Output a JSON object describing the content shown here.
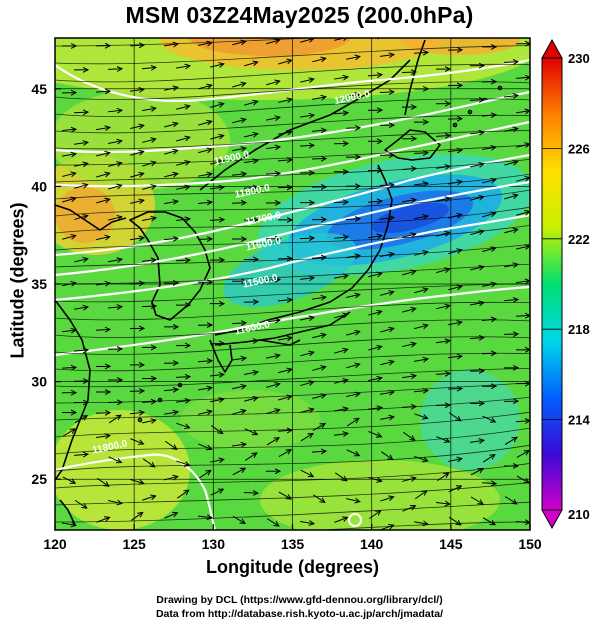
{
  "title": "MSM 03Z24May2025 (200.0hPa)",
  "xaxis": {
    "label": "Longitude (degrees)",
    "ticks": [
      120,
      125,
      130,
      135,
      140,
      145,
      150
    ],
    "range": [
      120,
      150
    ]
  },
  "yaxis": {
    "label": "Latitude  (degrees)",
    "ticks": [
      25,
      30,
      35,
      40,
      45
    ],
    "range": [
      22.4,
      47.6
    ]
  },
  "colorbar": {
    "ticks": [
      210,
      214,
      218,
      222,
      226,
      230
    ],
    "range": [
      210,
      230
    ],
    "colors": [
      "#d000c8",
      "#3a0ad8",
      "#0060ff",
      "#00d8e8",
      "#00e070",
      "#c8f000",
      "#ffe000",
      "#ff8000",
      "#e00000"
    ]
  },
  "contour_labels": [
    {
      "text": "12000.0",
      "lon": 138.8,
      "lat": 44.4
    },
    {
      "text": "11900.0",
      "lon": 131.2,
      "lat": 41.3
    },
    {
      "text": "11800.0",
      "lon": 132.5,
      "lat": 39.6
    },
    {
      "text": "11700.0",
      "lon": 133.2,
      "lat": 38.2
    },
    {
      "text": "11600.0",
      "lon": 133.2,
      "lat": 36.9
    },
    {
      "text": "11500.0",
      "lon": 133.0,
      "lat": 35.0
    },
    {
      "text": "11600.0",
      "lon": 132.5,
      "lat": 32.6
    },
    {
      "text": "11800.0",
      "lon": 123.5,
      "lat": 26.5
    }
  ],
  "credits": {
    "line1": "Drawing by DCL (https://www.gfd-dennou.org/library/dcl/)",
    "line2": "Data from http://database.rish.kyoto-u.ac.jp/arch/jmadata/"
  }
}
